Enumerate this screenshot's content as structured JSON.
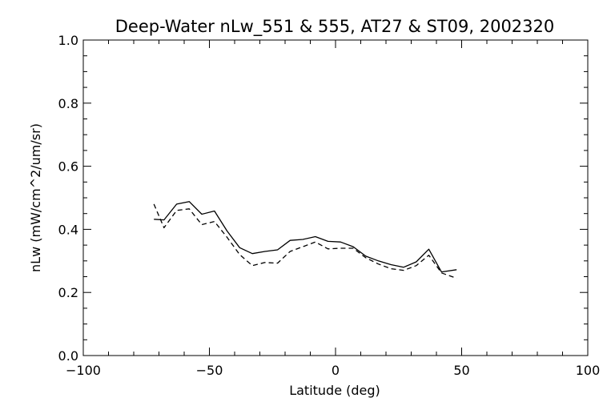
{
  "chart_data": {
    "type": "line",
    "title": "Deep-Water nLw_551 & 555, AT27 & ST09, 2002320",
    "xlabel": "Latitude (deg)",
    "ylabel": "nLw (mW/cm^2/um/sr)",
    "xlim": [
      -100,
      100
    ],
    "ylim": [
      0.0,
      1.0
    ],
    "x_ticks": [
      -100,
      -50,
      0,
      50,
      100
    ],
    "x_tick_labels": [
      "−100",
      "−50",
      "0",
      "50",
      "100"
    ],
    "y_ticks": [
      0.0,
      0.2,
      0.4,
      0.6,
      0.8,
      1.0
    ],
    "y_tick_labels": [
      "0.0",
      "0.2",
      "0.4",
      "0.6",
      "0.8",
      "1.0"
    ],
    "x_minor_step": 10,
    "y_minor_step": 0.05,
    "grid": false,
    "colors": {
      "line": "#000000",
      "axis": "#000000",
      "background": "#ffffff"
    },
    "series": [
      {
        "style": "solid",
        "x": [
          -72,
          -68,
          -63,
          -58,
          -53,
          -48,
          -43,
          -38,
          -33,
          -28,
          -23,
          -18,
          -13,
          -8,
          -3,
          2,
          7,
          12,
          17,
          22,
          27,
          32,
          37,
          42,
          48
        ],
        "y": [
          0.432,
          0.43,
          0.48,
          0.488,
          0.448,
          0.458,
          0.395,
          0.342,
          0.323,
          0.33,
          0.335,
          0.365,
          0.368,
          0.377,
          0.362,
          0.36,
          0.345,
          0.315,
          0.3,
          0.288,
          0.28,
          0.297,
          0.337,
          0.265,
          0.272
        ]
      },
      {
        "style": "dashed",
        "x": [
          -72,
          -68,
          -63,
          -58,
          -53,
          -48,
          -43,
          -38,
          -33,
          -28,
          -23,
          -18,
          -13,
          -8,
          -3,
          2,
          7,
          12,
          17,
          22,
          27,
          32,
          37,
          42,
          48
        ],
        "y": [
          0.48,
          0.405,
          0.46,
          0.465,
          0.415,
          0.425,
          0.375,
          0.32,
          0.285,
          0.295,
          0.293,
          0.33,
          0.345,
          0.36,
          0.338,
          0.34,
          0.34,
          0.31,
          0.29,
          0.275,
          0.27,
          0.285,
          0.318,
          0.262,
          0.245
        ]
      }
    ]
  }
}
